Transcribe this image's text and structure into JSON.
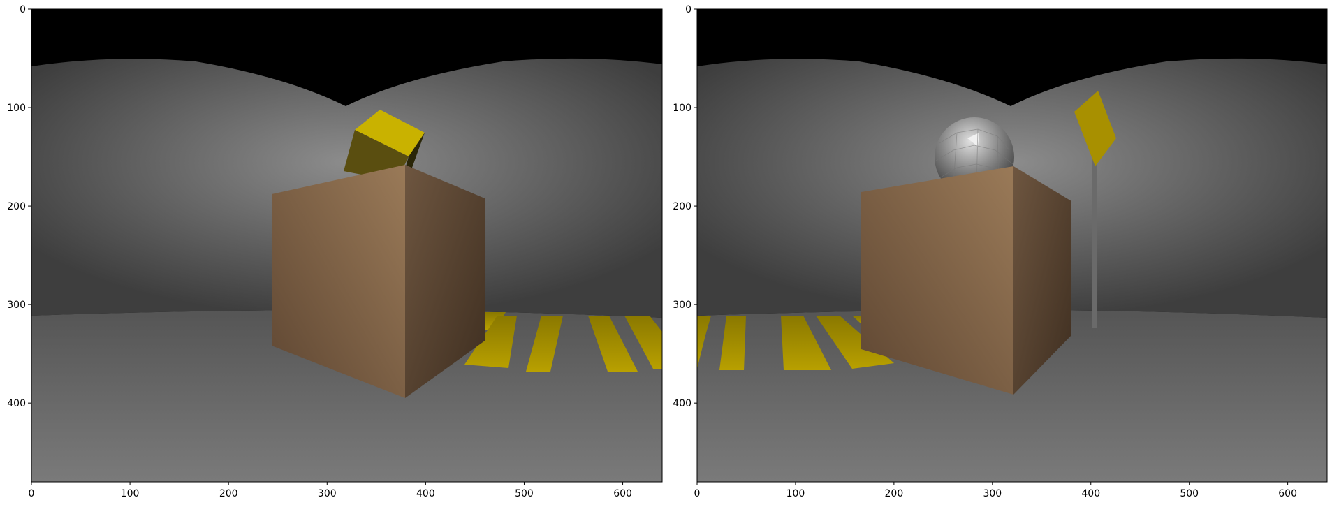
{
  "figure": {
    "panels": [
      {
        "id": "left",
        "scene_objects": [
          "brown-box",
          "yellow-cube",
          "yellow-crosswalk-stripes"
        ],
        "colors": {
          "box": "#8a6c4e",
          "cube": "#c9b200",
          "stripes": "#b8a000",
          "sky": "#000000",
          "wall": "#7a7a7a",
          "floor": "#6e6e6e"
        }
      },
      {
        "id": "right",
        "scene_objects": [
          "brown-box",
          "grey-faceted-sphere",
          "yellow-sign-on-pole",
          "yellow-crosswalk-stripes"
        ],
        "colors": {
          "box": "#8a6c4e",
          "sphere": "#9a9a9a",
          "sign": "#a89000",
          "stripes": "#b8a000",
          "sky": "#000000",
          "wall": "#7a7a7a",
          "floor": "#6e6e6e"
        }
      }
    ],
    "x_ticks": [
      "0",
      "100",
      "200",
      "300",
      "400",
      "500",
      "600"
    ],
    "y_ticks": [
      "0",
      "100",
      "200",
      "300",
      "400"
    ],
    "x_range": [
      0,
      640
    ],
    "y_range": [
      480,
      0
    ]
  }
}
